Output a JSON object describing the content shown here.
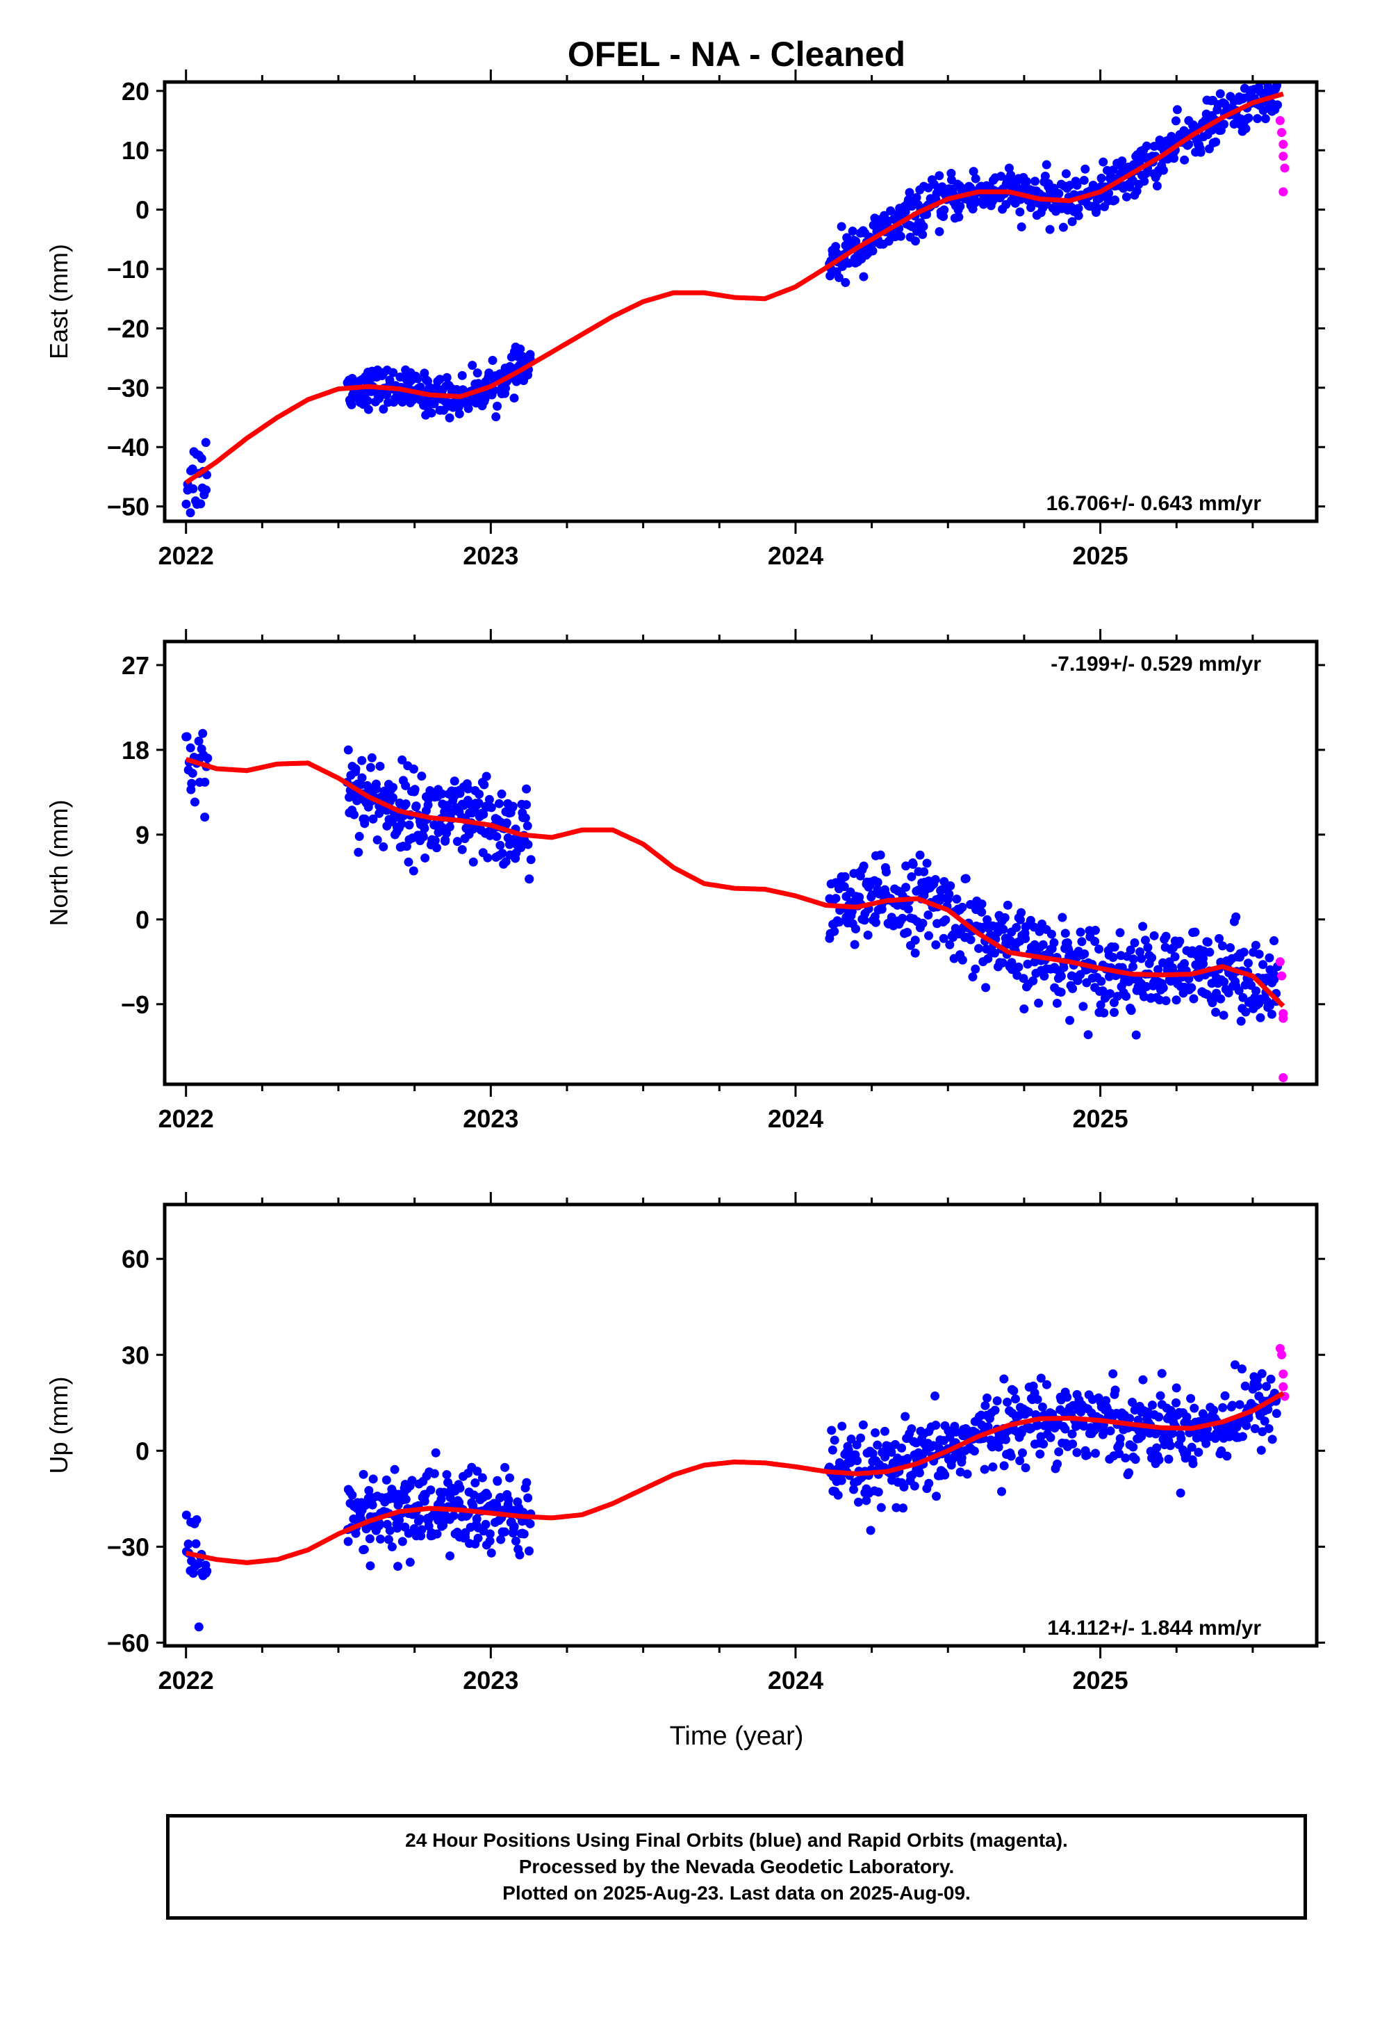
{
  "title": "OFEL  - NA - Cleaned",
  "xlabel": "Time (year)",
  "footer": {
    "line1": "24 Hour Positions Using Final Orbits (blue) and Rapid Orbits (magenta).",
    "line2": "Processed by the Nevada Geodetic Laboratory.",
    "line3": "Plotted on 2025-Aug-23. Last data on 2025-Aug-09."
  },
  "colors": {
    "final": "#0000ff",
    "rapid": "#ff00ff",
    "fit": "#ff0000",
    "axes": "#000000"
  },
  "chart_data": [
    {
      "type": "scatter",
      "ylabel": "East (mm)",
      "rate_label": "16.706+/- 0.643 mm/yr",
      "rate_position": "bottom-right",
      "xlim": [
        2021.93,
        2025.71
      ],
      "ylim": [
        -52.5,
        21.5
      ],
      "yticks": [
        -50,
        -40,
        -30,
        -20,
        -10,
        0,
        10,
        20
      ],
      "xticks": [
        2022,
        2023,
        2024,
        2025
      ],
      "fit_line": [
        [
          2022.0,
          -46
        ],
        [
          2022.1,
          -42.5
        ],
        [
          2022.2,
          -38.5
        ],
        [
          2022.3,
          -35
        ],
        [
          2022.4,
          -32
        ],
        [
          2022.5,
          -30.2
        ],
        [
          2022.6,
          -29.8
        ],
        [
          2022.7,
          -30.2
        ],
        [
          2022.8,
          -31.2
        ],
        [
          2022.9,
          -31.5
        ],
        [
          2023.0,
          -29.8
        ],
        [
          2023.1,
          -27
        ],
        [
          2023.2,
          -24
        ],
        [
          2023.3,
          -21
        ],
        [
          2023.4,
          -18
        ],
        [
          2023.5,
          -15.5
        ],
        [
          2023.6,
          -14
        ],
        [
          2023.7,
          -14
        ],
        [
          2023.8,
          -14.8
        ],
        [
          2023.9,
          -15
        ],
        [
          2024.0,
          -13
        ],
        [
          2024.1,
          -9.8
        ],
        [
          2024.2,
          -6.5
        ],
        [
          2024.3,
          -3.5
        ],
        [
          2024.4,
          -0.5
        ],
        [
          2024.5,
          1.8
        ],
        [
          2024.6,
          3
        ],
        [
          2024.7,
          3
        ],
        [
          2024.8,
          1.8
        ],
        [
          2024.9,
          1.5
        ],
        [
          2025.0,
          3
        ],
        [
          2025.1,
          6
        ],
        [
          2025.2,
          9
        ],
        [
          2025.3,
          12.5
        ],
        [
          2025.4,
          15.5
        ],
        [
          2025.5,
          18
        ],
        [
          2025.6,
          19.5
        ]
      ],
      "rapid_points": [
        [
          2025.59,
          15
        ],
        [
          2025.595,
          13
        ],
        [
          2025.6,
          11
        ],
        [
          2025.6,
          9
        ],
        [
          2025.605,
          7
        ],
        [
          2025.6,
          3
        ]
      ],
      "final_segments": [
        {
          "x_start": 2022.0,
          "x_end": 2022.07,
          "count": 22,
          "scatter": 3.5
        },
        {
          "x_start": 2022.53,
          "x_end": 2023.13,
          "count": 260,
          "scatter": 1.6
        },
        {
          "x_start": 2024.11,
          "x_end": 2025.58,
          "count": 560,
          "scatter": 1.9
        }
      ]
    },
    {
      "type": "scatter",
      "ylabel": "North (mm)",
      "rate_label": "-7.199+/- 0.529 mm/yr",
      "rate_position": "top-right",
      "xlim": [
        2021.93,
        2025.71
      ],
      "ylim": [
        -17.5,
        29.5
      ],
      "yticks": [
        -9,
        0,
        9,
        18,
        27
      ],
      "xticks": [
        2022,
        2023,
        2024,
        2025
      ],
      "fit_line": [
        [
          2022.0,
          17
        ],
        [
          2022.1,
          16
        ],
        [
          2022.2,
          15.8
        ],
        [
          2022.3,
          16.5
        ],
        [
          2022.4,
          16.6
        ],
        [
          2022.5,
          15
        ],
        [
          2022.6,
          13
        ],
        [
          2022.7,
          11.5
        ],
        [
          2022.8,
          10.8
        ],
        [
          2022.9,
          10.5
        ],
        [
          2023.0,
          10
        ],
        [
          2023.1,
          9
        ],
        [
          2023.2,
          8.7
        ],
        [
          2023.3,
          9.5
        ],
        [
          2023.4,
          9.5
        ],
        [
          2023.5,
          8
        ],
        [
          2023.6,
          5.5
        ],
        [
          2023.7,
          3.8
        ],
        [
          2023.8,
          3.3
        ],
        [
          2023.9,
          3.2
        ],
        [
          2024.0,
          2.5
        ],
        [
          2024.1,
          1.5
        ],
        [
          2024.2,
          1.3
        ],
        [
          2024.3,
          2.0
        ],
        [
          2024.4,
          2.2
        ],
        [
          2024.5,
          1.0
        ],
        [
          2024.6,
          -1.5
        ],
        [
          2024.7,
          -3.5
        ],
        [
          2024.8,
          -4.0
        ],
        [
          2024.9,
          -4.5
        ],
        [
          2025.0,
          -5.2
        ],
        [
          2025.1,
          -5.8
        ],
        [
          2025.2,
          -5.9
        ],
        [
          2025.3,
          -5.8
        ],
        [
          2025.4,
          -5.0
        ],
        [
          2025.5,
          -6.0
        ],
        [
          2025.6,
          -9.2
        ]
      ],
      "rapid_points": [
        [
          2025.59,
          -4.5
        ],
        [
          2025.595,
          -6
        ],
        [
          2025.6,
          -10
        ],
        [
          2025.6,
          -10.5
        ],
        [
          2025.6,
          -16.8
        ]
      ],
      "final_segments": [
        {
          "x_start": 2022.0,
          "x_end": 2022.07,
          "count": 22,
          "scatter": 3.2
        },
        {
          "x_start": 2022.53,
          "x_end": 2023.13,
          "count": 260,
          "scatter": 2.3
        },
        {
          "x_start": 2024.11,
          "x_end": 2025.58,
          "count": 560,
          "scatter": 2.2
        }
      ]
    },
    {
      "type": "scatter",
      "ylabel": "Up (mm)",
      "rate_label": "14.112+/- 1.844 mm/yr",
      "rate_position": "bottom-right",
      "xlim": [
        2021.93,
        2025.71
      ],
      "ylim": [
        -61,
        77
      ],
      "yticks": [
        -60,
        -30,
        0,
        30,
        60
      ],
      "xticks": [
        2022,
        2023,
        2024,
        2025
      ],
      "fit_line": [
        [
          2022.0,
          -32
        ],
        [
          2022.1,
          -34
        ],
        [
          2022.2,
          -35
        ],
        [
          2022.3,
          -34
        ],
        [
          2022.4,
          -31
        ],
        [
          2022.5,
          -26
        ],
        [
          2022.6,
          -22
        ],
        [
          2022.7,
          -19
        ],
        [
          2022.8,
          -18
        ],
        [
          2022.9,
          -18.5
        ],
        [
          2023.0,
          -19.5
        ],
        [
          2023.1,
          -20.5
        ],
        [
          2023.2,
          -21
        ],
        [
          2023.3,
          -20
        ],
        [
          2023.4,
          -16.5
        ],
        [
          2023.5,
          -12
        ],
        [
          2023.6,
          -7.5
        ],
        [
          2023.7,
          -4.5
        ],
        [
          2023.8,
          -3.5
        ],
        [
          2023.9,
          -3.8
        ],
        [
          2024.0,
          -5
        ],
        [
          2024.1,
          -6.5
        ],
        [
          2024.2,
          -7.2
        ],
        [
          2024.3,
          -6.5
        ],
        [
          2024.4,
          -4
        ],
        [
          2024.5,
          0
        ],
        [
          2024.6,
          4.5
        ],
        [
          2024.7,
          8
        ],
        [
          2024.8,
          10
        ],
        [
          2024.9,
          10.2
        ],
        [
          2025.0,
          9.5
        ],
        [
          2025.1,
          8.3
        ],
        [
          2025.2,
          7.2
        ],
        [
          2025.3,
          7.0
        ],
        [
          2025.4,
          9
        ],
        [
          2025.5,
          12.5
        ],
        [
          2025.6,
          18
        ]
      ],
      "rapid_points": [
        [
          2025.59,
          32
        ],
        [
          2025.595,
          30
        ],
        [
          2025.6,
          24
        ],
        [
          2025.6,
          20
        ],
        [
          2025.605,
          17
        ]
      ],
      "final_segments": [
        {
          "x_start": 2022.0,
          "x_end": 2022.07,
          "count": 22,
          "scatter": 9
        },
        {
          "x_start": 2022.53,
          "x_end": 2023.13,
          "count": 260,
          "scatter": 7
        },
        {
          "x_start": 2024.11,
          "x_end": 2025.58,
          "count": 560,
          "scatter": 6
        }
      ]
    }
  ]
}
